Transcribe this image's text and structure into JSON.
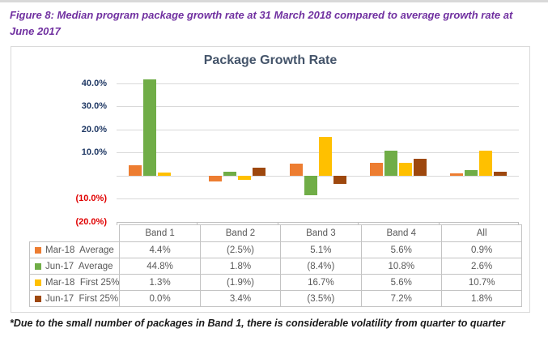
{
  "figure_title": {
    "line1": "Figure 8:  Median program package growth rate at 31 March 2018 compared to average growth rate at",
    "line2": "June 2017"
  },
  "footnote": "*Due to the small number of packages in Band 1, there is considerable volatility from quarter to quarter",
  "chart_data": {
    "type": "bar",
    "title": "Package Growth Rate",
    "categories": [
      "Band 1",
      "Band 2",
      "Band 3",
      "Band 4",
      "All"
    ],
    "series": [
      {
        "name": "Mar-18  Average",
        "color": "#ED7D31",
        "values": [
          4.4,
          -2.5,
          5.1,
          5.6,
          0.9
        ],
        "labels": [
          "4.4%",
          "(2.5%)",
          "5.1%",
          "5.6%",
          "0.9%"
        ]
      },
      {
        "name": "Jun-17  Average",
        "color": "#70AD47",
        "values": [
          44.8,
          1.8,
          -8.4,
          10.8,
          2.6
        ],
        "labels": [
          "44.8%",
          "1.8%",
          "(8.4%)",
          "10.8%",
          "2.6%"
        ]
      },
      {
        "name": "Mar-18  First 25%",
        "color": "#FFC000",
        "values": [
          1.3,
          -1.9,
          16.7,
          5.6,
          10.7
        ],
        "labels": [
          "1.3%",
          "(1.9%)",
          "16.7%",
          "5.6%",
          "10.7%"
        ]
      },
      {
        "name": "Jun-17  First 25%",
        "color": "#9E480E",
        "values": [
          0.0,
          3.4,
          -3.5,
          7.2,
          1.8
        ],
        "labels": [
          "0.0%",
          "3.4%",
          "(3.5%)",
          "7.2%",
          "1.8%"
        ]
      }
    ],
    "y_axis": {
      "ticks": [
        40,
        30,
        20,
        10,
        0,
        -10,
        -20
      ],
      "tick_labels": [
        "40.0%",
        "30.0%",
        "20.0%",
        "10.0%",
        "",
        "(10.0%)",
        "(20.0%)"
      ],
      "max": 41.75,
      "min": -20,
      "positive_label_color": "#1F3864",
      "negative_label_color": "#E00000"
    },
    "grid": true,
    "legend_position": "table-left",
    "note": "Bar for Jun-17 Average Band 1 (44.8%) is clipped at top of plot area"
  },
  "colors": {
    "figure_title": "#7030A0",
    "chart_title": "#44546A",
    "gridline": "#D9D9D9",
    "table_border": "#C3C3C3",
    "table_text": "#595959"
  }
}
